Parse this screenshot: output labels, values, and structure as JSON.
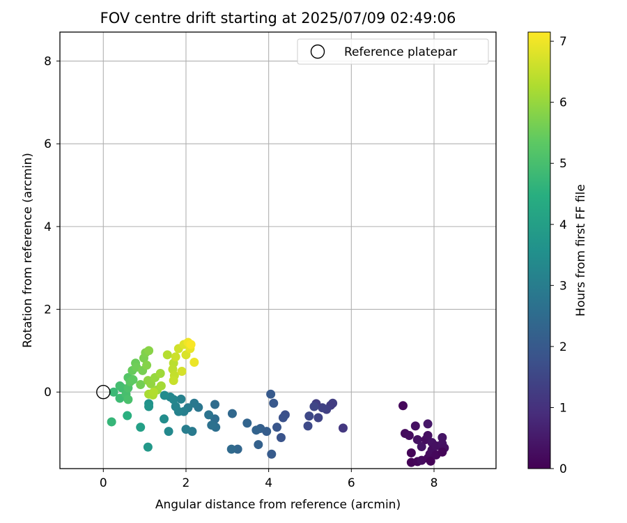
{
  "chart_data": {
    "type": "scatter",
    "title": "FOV centre drift starting at 2025/07/09 02:49:06",
    "xlabel": "Angular distance from reference (arcmin)",
    "ylabel": "Rotation from reference (arcmin)",
    "xlim": [
      -1.05,
      9.5
    ],
    "ylim": [
      -1.85,
      8.7
    ],
    "xticks": [
      0,
      2,
      4,
      6,
      8
    ],
    "yticks": [
      0,
      2,
      4,
      6,
      8
    ],
    "grid": true,
    "legend": {
      "placement": "top-right",
      "entries": [
        "Reference platepar"
      ]
    },
    "reference_point": {
      "x": 0,
      "y": 0,
      "label": "Reference platepar",
      "marker": "open-circle"
    },
    "colorbar": {
      "label": "Hours from first FF file",
      "range": [
        0,
        7.15
      ],
      "ticks": [
        0,
        1,
        2,
        3,
        4,
        5,
        6,
        7
      ],
      "colormap": "viridis"
    },
    "points": [
      {
        "x": 7.25,
        "y": -0.33,
        "h": 0.15
      },
      {
        "x": 7.3,
        "y": -1.0,
        "h": 0.2
      },
      {
        "x": 7.4,
        "y": -1.05,
        "h": 0.25
      },
      {
        "x": 7.45,
        "y": -1.47,
        "h": 0.1
      },
      {
        "x": 7.45,
        "y": -1.7,
        "h": 0.05
      },
      {
        "x": 7.55,
        "y": -0.82,
        "h": 0.3
      },
      {
        "x": 7.6,
        "y": -1.15,
        "h": 0.35
      },
      {
        "x": 7.6,
        "y": -1.68,
        "h": 0.1
      },
      {
        "x": 7.7,
        "y": -1.32,
        "h": 0.4
      },
      {
        "x": 7.7,
        "y": -1.65,
        "h": 0.2
      },
      {
        "x": 7.8,
        "y": -1.15,
        "h": 0.25
      },
      {
        "x": 7.85,
        "y": -0.77,
        "h": 0.45
      },
      {
        "x": 7.85,
        "y": -1.05,
        "h": 0.3
      },
      {
        "x": 7.85,
        "y": -1.6,
        "h": 0.15
      },
      {
        "x": 7.9,
        "y": -1.5,
        "h": 0.2
      },
      {
        "x": 7.92,
        "y": -1.67,
        "h": 0.05
      },
      {
        "x": 7.95,
        "y": -1.22,
        "h": 0.35
      },
      {
        "x": 7.95,
        "y": -1.4,
        "h": 0.25
      },
      {
        "x": 8.05,
        "y": -1.3,
        "h": 0.3
      },
      {
        "x": 8.05,
        "y": -1.52,
        "h": 0.15
      },
      {
        "x": 8.2,
        "y": -1.1,
        "h": 0.4
      },
      {
        "x": 8.2,
        "y": -1.25,
        "h": 0.35
      },
      {
        "x": 8.25,
        "y": -1.35,
        "h": 0.3
      },
      {
        "x": 8.2,
        "y": -1.45,
        "h": 0.1
      },
      {
        "x": 5.8,
        "y": -0.87,
        "h": 1.15
      },
      {
        "x": 5.55,
        "y": -0.27,
        "h": 1.3
      },
      {
        "x": 5.5,
        "y": -0.32,
        "h": 1.25
      },
      {
        "x": 5.4,
        "y": -0.42,
        "h": 1.35
      },
      {
        "x": 5.3,
        "y": -0.38,
        "h": 1.4
      },
      {
        "x": 5.2,
        "y": -0.62,
        "h": 1.45
      },
      {
        "x": 5.15,
        "y": -0.28,
        "h": 1.3
      },
      {
        "x": 5.1,
        "y": -0.35,
        "h": 1.5
      },
      {
        "x": 4.98,
        "y": -0.58,
        "h": 1.55
      },
      {
        "x": 4.95,
        "y": -0.82,
        "h": 1.6
      },
      {
        "x": 4.4,
        "y": -0.55,
        "h": 1.75
      },
      {
        "x": 4.35,
        "y": -0.62,
        "h": 1.8
      },
      {
        "x": 4.3,
        "y": -1.1,
        "h": 1.85
      },
      {
        "x": 4.2,
        "y": -0.85,
        "h": 1.9
      },
      {
        "x": 4.12,
        "y": -0.27,
        "h": 1.95
      },
      {
        "x": 4.05,
        "y": -0.05,
        "h": 2.0
      },
      {
        "x": 4.07,
        "y": -1.5,
        "h": 2.05
      },
      {
        "x": 3.95,
        "y": -0.95,
        "h": 2.1
      },
      {
        "x": 3.8,
        "y": -0.88,
        "h": 2.15
      },
      {
        "x": 3.75,
        "y": -1.27,
        "h": 2.2
      },
      {
        "x": 3.7,
        "y": -0.92,
        "h": 2.25
      },
      {
        "x": 3.48,
        "y": -0.75,
        "h": 2.3
      },
      {
        "x": 3.25,
        "y": -1.38,
        "h": 2.35
      },
      {
        "x": 3.12,
        "y": -0.52,
        "h": 2.4
      },
      {
        "x": 3.1,
        "y": -1.38,
        "h": 2.45
      },
      {
        "x": 2.7,
        "y": -0.3,
        "h": 2.5
      },
      {
        "x": 2.7,
        "y": -0.65,
        "h": 2.55
      },
      {
        "x": 2.72,
        "y": -0.85,
        "h": 2.6
      },
      {
        "x": 2.62,
        "y": -0.8,
        "h": 2.65
      },
      {
        "x": 2.55,
        "y": -0.55,
        "h": 2.7
      },
      {
        "x": 2.3,
        "y": -0.37,
        "h": 2.8
      },
      {
        "x": 2.2,
        "y": -0.27,
        "h": 2.85
      },
      {
        "x": 2.15,
        "y": -0.95,
        "h": 2.9
      },
      {
        "x": 2.05,
        "y": -0.38,
        "h": 2.95
      },
      {
        "x": 2.0,
        "y": -0.9,
        "h": 3.0
      },
      {
        "x": 1.95,
        "y": -0.47,
        "h": 3.05
      },
      {
        "x": 1.88,
        "y": -0.17,
        "h": 3.1
      },
      {
        "x": 1.82,
        "y": -0.47,
        "h": 3.15
      },
      {
        "x": 1.75,
        "y": -0.35,
        "h": 3.2
      },
      {
        "x": 1.7,
        "y": -0.18,
        "h": 3.25
      },
      {
        "x": 1.62,
        "y": -0.12,
        "h": 3.3
      },
      {
        "x": 1.58,
        "y": -0.95,
        "h": 3.35
      },
      {
        "x": 1.48,
        "y": -0.08,
        "h": 3.4
      },
      {
        "x": 1.47,
        "y": -0.65,
        "h": 3.45
      },
      {
        "x": 1.1,
        "y": -0.28,
        "h": 3.6
      },
      {
        "x": 1.1,
        "y": -0.35,
        "h": 3.7
      },
      {
        "x": 1.08,
        "y": -1.33,
        "h": 3.8
      },
      {
        "x": 0.9,
        "y": -0.85,
        "h": 4.0
      },
      {
        "x": 0.58,
        "y": -0.57,
        "h": 4.5
      },
      {
        "x": 0.2,
        "y": -0.72,
        "h": 4.7
      },
      {
        "x": 0.25,
        "y": 0.0,
        "h": 4.8
      },
      {
        "x": 0.4,
        "y": -0.15,
        "h": 4.85
      },
      {
        "x": 0.45,
        "y": 0.1,
        "h": 4.9
      },
      {
        "x": 0.4,
        "y": 0.15,
        "h": 4.95
      },
      {
        "x": 0.55,
        "y": -0.05,
        "h": 5.0
      },
      {
        "x": 0.6,
        "y": -0.18,
        "h": 5.05
      },
      {
        "x": 0.6,
        "y": 0.1,
        "h": 5.1
      },
      {
        "x": 0.6,
        "y": 0.35,
        "h": 5.2
      },
      {
        "x": 0.65,
        "y": 0.25,
        "h": 5.3
      },
      {
        "x": 0.72,
        "y": 0.3,
        "h": 5.35
      },
      {
        "x": 0.7,
        "y": 0.52,
        "h": 5.45
      },
      {
        "x": 0.78,
        "y": 0.7,
        "h": 5.5
      },
      {
        "x": 0.8,
        "y": 0.6,
        "h": 5.55
      },
      {
        "x": 0.9,
        "y": 0.18,
        "h": 5.6
      },
      {
        "x": 0.95,
        "y": 0.52,
        "h": 5.65
      },
      {
        "x": 0.98,
        "y": 0.82,
        "h": 5.7
      },
      {
        "x": 1.02,
        "y": 0.95,
        "h": 5.75
      },
      {
        "x": 1.05,
        "y": 0.65,
        "h": 5.8
      },
      {
        "x": 1.1,
        "y": 1.0,
        "h": 5.85
      },
      {
        "x": 1.08,
        "y": 0.28,
        "h": 5.9
      },
      {
        "x": 1.15,
        "y": 0.2,
        "h": 5.95
      },
      {
        "x": 1.25,
        "y": 0.35,
        "h": 6.0
      },
      {
        "x": 1.3,
        "y": 0.05,
        "h": 6.05
      },
      {
        "x": 1.38,
        "y": 0.45,
        "h": 6.1
      },
      {
        "x": 1.4,
        "y": 0.15,
        "h": 6.15
      },
      {
        "x": 1.1,
        "y": -0.05,
        "h": 6.2
      },
      {
        "x": 1.2,
        "y": -0.07,
        "h": 6.25
      },
      {
        "x": 1.22,
        "y": 0.0,
        "h": 6.3
      },
      {
        "x": 1.55,
        "y": 0.9,
        "h": 6.35
      },
      {
        "x": 1.7,
        "y": 0.7,
        "h": 6.4
      },
      {
        "x": 1.68,
        "y": 0.55,
        "h": 6.45
      },
      {
        "x": 1.72,
        "y": 0.4,
        "h": 6.5
      },
      {
        "x": 1.7,
        "y": 0.28,
        "h": 6.55
      },
      {
        "x": 1.75,
        "y": 0.85,
        "h": 6.6
      },
      {
        "x": 1.82,
        "y": 1.05,
        "h": 6.65
      },
      {
        "x": 1.9,
        "y": 0.5,
        "h": 6.7
      },
      {
        "x": 2.0,
        "y": 0.9,
        "h": 6.75
      },
      {
        "x": 1.95,
        "y": 1.15,
        "h": 6.8
      },
      {
        "x": 2.1,
        "y": 1.05,
        "h": 6.9
      },
      {
        "x": 2.2,
        "y": 0.72,
        "h": 6.95
      },
      {
        "x": 2.05,
        "y": 1.2,
        "h": 7.0
      },
      {
        "x": 2.12,
        "y": 1.15,
        "h": 7.1
      }
    ]
  }
}
